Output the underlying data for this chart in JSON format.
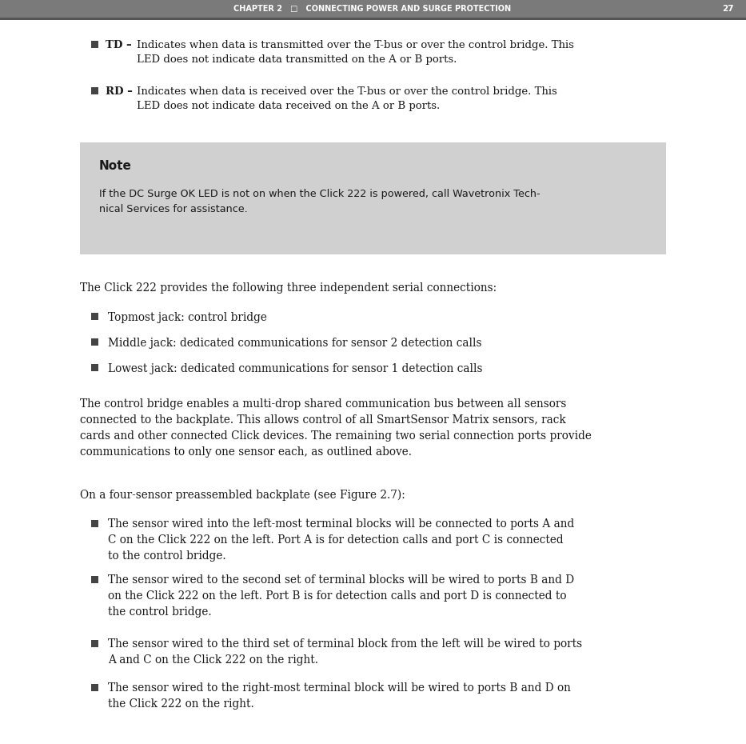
{
  "page_bg": "#ffffff",
  "header_bg": "#7a7a7a",
  "header_text": "CHAPTER 2   □   CONNECTING POWER AND SURGE PROTECTION",
  "header_page_num": "27",
  "header_text_color": "#ffffff",
  "note_bg": "#d0d0d0",
  "note_title": "Note",
  "note_body_line1": "If the DC Surge OK LED is not on when the Click 222 is powered, call Wavetronix Tech-",
  "note_body_line2": "nical Services for assistance.",
  "bullet_color": "#444444",
  "body_text_color": "#1a1a1a",
  "td_label": "TD – ",
  "td_text": "Indicates when data is transmitted over the T-bus or over the control bridge. This\nLED does not indicate data transmitted on the A or B ports.",
  "rd_label": "RD – ",
  "rd_text": "Indicates when data is received over the T-bus or over the control bridge. This\nLED does not indicate data received on the A or B ports.",
  "para1": "The Click 222 provides the following three independent serial connections:",
  "bullet_items_2": [
    "Topmost jack: control bridge",
    "Middle jack: dedicated communications for sensor 2 detection calls",
    "Lowest jack: dedicated communications for sensor 1 detection calls"
  ],
  "para2_line1": "The control bridge enables a multi-drop shared communication bus between all sensors",
  "para2_line2": "connected to the backplate. This allows control of all SmartSensor Matrix sensors, rack",
  "para2_line3": "cards and other connected Click devices. The remaining two serial connection ports provide",
  "para2_line4": "communications to only one sensor each, as outlined above.",
  "para3": "On a four-sensor preassembled backplate (see Figure 2.7):",
  "bullet3_1_line1": "The sensor wired into the left-most terminal blocks will be connected to ports A and",
  "bullet3_1_line2": "C on the Click 222 on the left. Port A is for detection calls and port C is connected",
  "bullet3_1_line3": "to the control bridge.",
  "bullet3_2_line1": "The sensor wired to the second set of terminal blocks will be wired to ports B and D",
  "bullet3_2_line2": "on the Click 222 on the left. Port B is for detection calls and port D is connected to",
  "bullet3_2_line3": "the control bridge.",
  "bullet3_3_line1": "The sensor wired to the third set of terminal block from the left will be wired to ports",
  "bullet3_3_line2": "A and C on the Click 222 on the right.",
  "bullet3_4_line1": "The sensor wired to the right-most terminal block will be wired to ports B and D on",
  "bullet3_4_line2": "the Click 222 on the right."
}
